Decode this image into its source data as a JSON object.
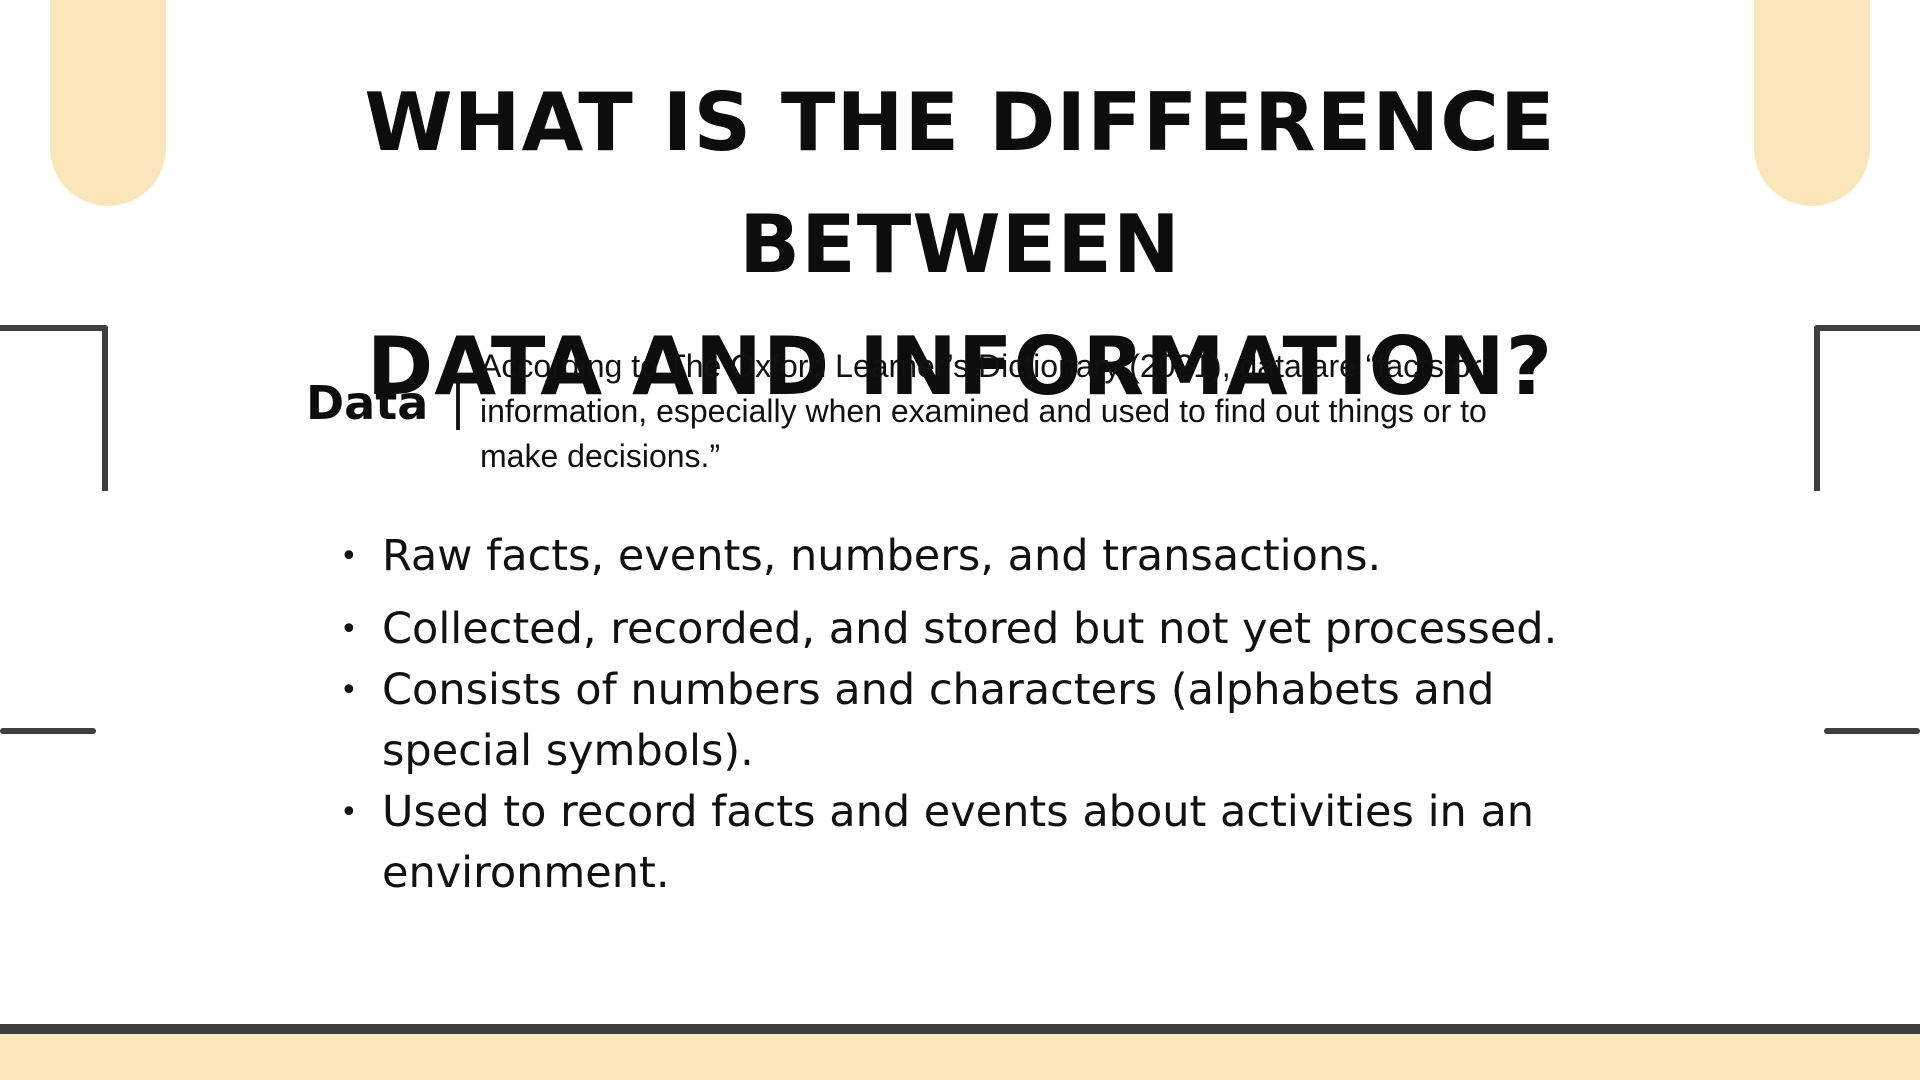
{
  "slide": {
    "title_line1": "WHAT IS THE DIFFERENCE BETWEEN",
    "title_line2": "DATA AND INFORMATION?",
    "term": "Data",
    "term_separator": "|",
    "definition": "According to The Oxford Learner’s Dictionary (2021), data are “facts or information, especially when examined and used to find out things or to make decisions.”",
    "bullet_symbol": "•",
    "bullets": [
      " Raw facts, events, numbers, and transactions.",
      "  Collected, recorded, and stored but not yet processed.",
      "  Consists of numbers and characters (alphabets and special symbols).",
      "  Used to record facts and events about activities in an environment."
    ]
  },
  "colors": {
    "accent": "#fbe6bb",
    "frame": "#3f3f3f",
    "text": "#0d0d0d"
  }
}
